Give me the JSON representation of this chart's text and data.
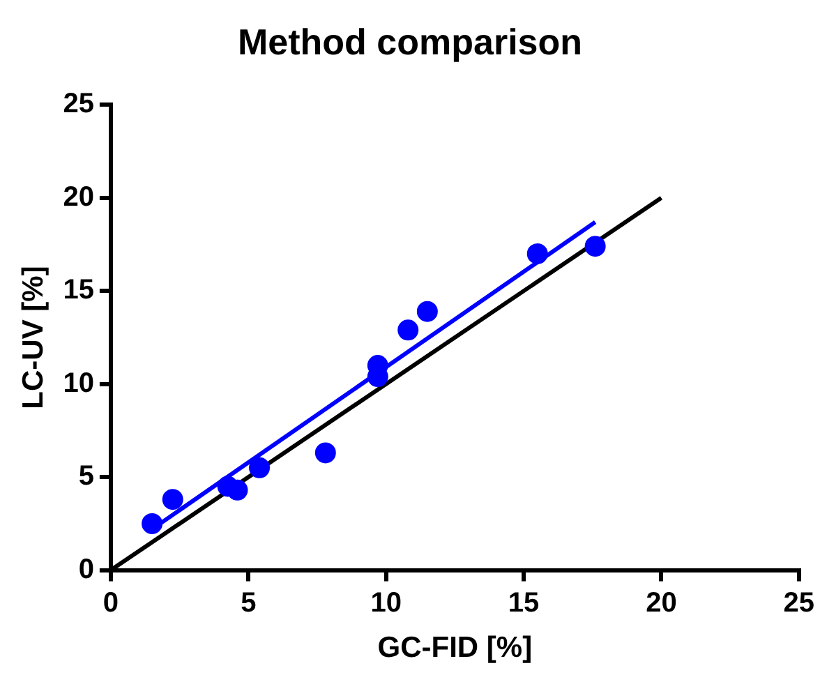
{
  "chart_data": {
    "type": "scatter",
    "title": "Method comparison",
    "xlabel": "GC-FID [%]",
    "ylabel": "LC-UV [%]",
    "xlim": [
      0,
      25
    ],
    "xticks": [
      0,
      5,
      10,
      15,
      20,
      25
    ],
    "ylim": [
      0,
      25
    ],
    "yticks": [
      0,
      5,
      10,
      15,
      20,
      25
    ],
    "grid": false,
    "legend": false,
    "marker": "circle",
    "series": [
      {
        "type": "scatter",
        "color": "#0000ff",
        "x": [
          1.5,
          2.25,
          4.25,
          4.6,
          5.4,
          7.8,
          9.7,
          9.7,
          10.8,
          11.5,
          15.5,
          17.6
        ],
        "values": [
          2.5,
          3.8,
          4.5,
          4.3,
          5.5,
          6.3,
          11.0,
          10.4,
          12.9,
          13.9,
          17.0,
          17.4
        ]
      },
      {
        "type": "line",
        "color": "#0000ff",
        "marker": "none",
        "x": [
          1.5,
          17.6
        ],
        "values": [
          2.2,
          18.7
        ]
      },
      {
        "type": "line",
        "color": "#000000",
        "marker": "none",
        "x": [
          0,
          20
        ],
        "values": [
          0,
          20
        ]
      }
    ]
  }
}
